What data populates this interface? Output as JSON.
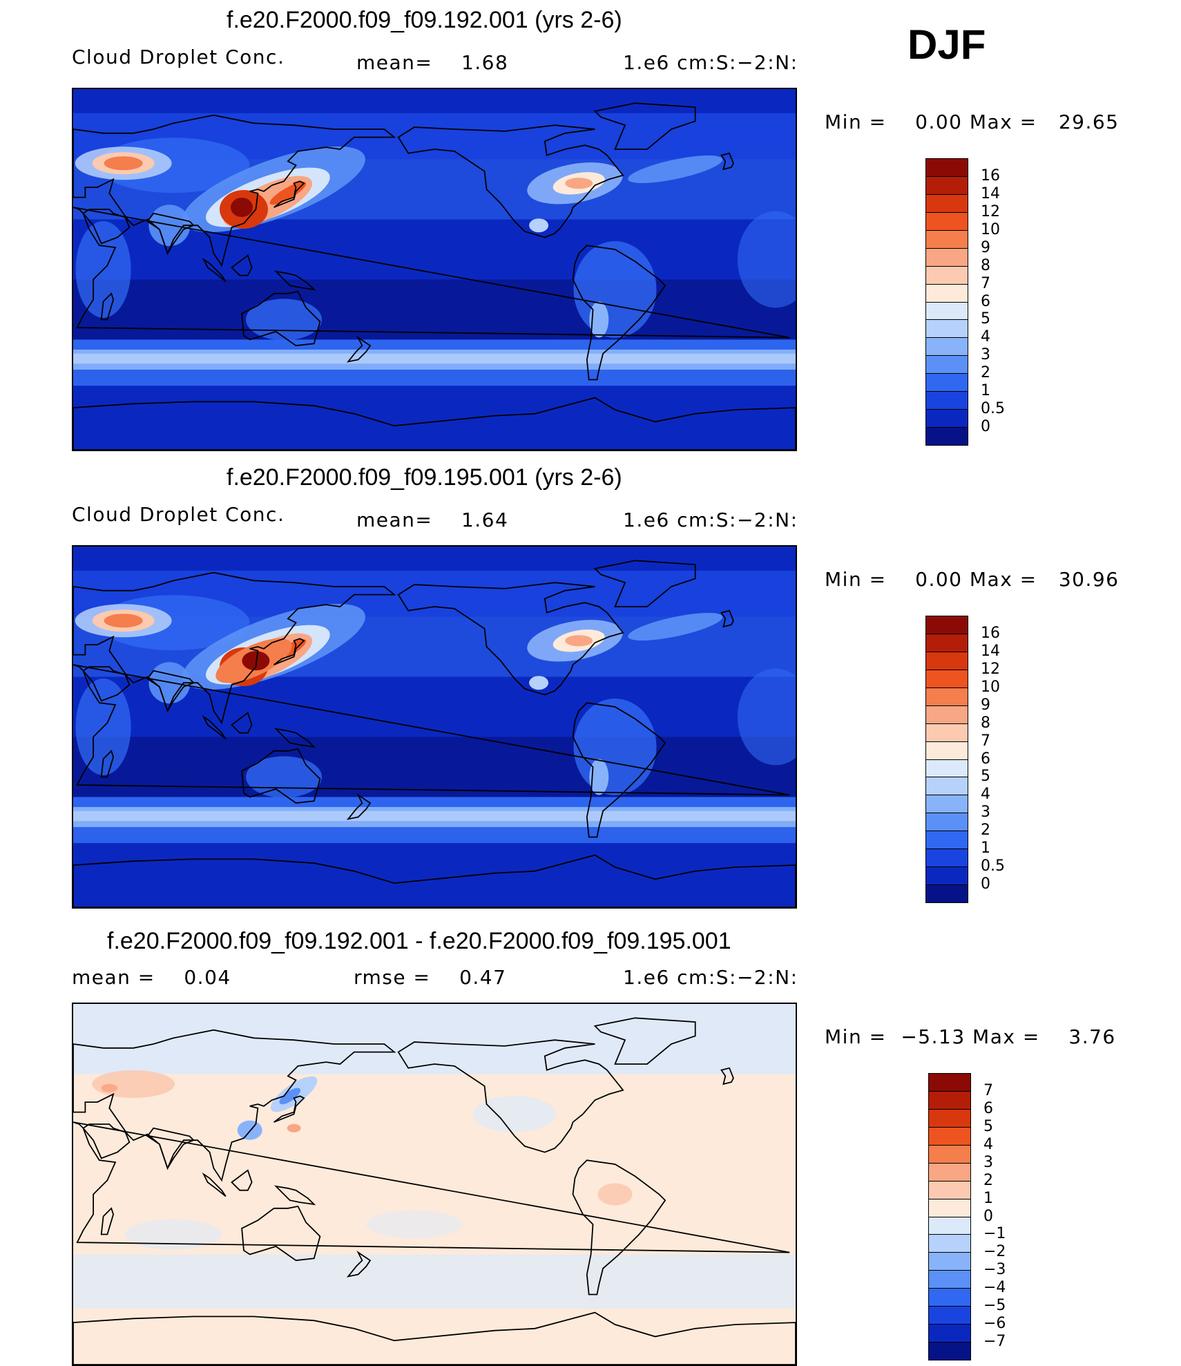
{
  "season": "DJF",
  "panels": [
    {
      "title": "f.e20.F2000.f09_f09.192.001 (yrs 2-6)",
      "left_text": "Cloud Droplet Conc.",
      "mid_text": "mean=    1.68",
      "right_text": "1.e6 cm:S:−2:N:",
      "minmax": "Min =    0.00 Max =   29.65",
      "levels": [
        "16",
        "14",
        "12",
        "10",
        "9",
        "8",
        "7",
        "6",
        "5",
        "4",
        "3",
        "2",
        "1",
        "0.5",
        "0"
      ],
      "colors": [
        "#8b0a05",
        "#b41e08",
        "#d8380d",
        "#ee5420",
        "#f47e4c",
        "#f8a683",
        "#fbcab0",
        "#fdeadb",
        "#dbe9fb",
        "#b6d1fb",
        "#88b3fa",
        "#5b91f6",
        "#3068f1",
        "#1a44e0",
        "#0a28c0",
        "#061287"
      ]
    },
    {
      "title": "f.e20.F2000.f09_f09.195.001 (yrs 2-6)",
      "left_text": "Cloud Droplet Conc.",
      "mid_text": "mean=    1.64",
      "right_text": "1.e6 cm:S:−2:N:",
      "minmax": "Min =    0.00 Max =   30.96",
      "levels": [
        "16",
        "14",
        "12",
        "10",
        "9",
        "8",
        "7",
        "6",
        "5",
        "4",
        "3",
        "2",
        "1",
        "0.5",
        "0"
      ],
      "colors": [
        "#8b0a05",
        "#b41e08",
        "#d8380d",
        "#ee5420",
        "#f47e4c",
        "#f8a683",
        "#fbcab0",
        "#fdeadb",
        "#dbe9fb",
        "#b6d1fb",
        "#88b3fa",
        "#5b91f6",
        "#3068f1",
        "#1a44e0",
        "#0a28c0",
        "#061287"
      ]
    },
    {
      "title": "f.e20.F2000.f09_f09.192.001 - f.e20.F2000.f09_f09.195.001",
      "left_text": "mean =    0.04",
      "mid_text": "rmse =    0.47",
      "right_text": "1.e6 cm:S:−2:N:",
      "minmax": "Min =  −5.13 Max =    3.76",
      "levels": [
        "7",
        "6",
        "5",
        "4",
        "3",
        "2",
        "1",
        "0",
        "−1",
        "−2",
        "−3",
        "−4",
        "−5",
        "−6",
        "−7"
      ],
      "colors": [
        "#8b0a05",
        "#b41e08",
        "#d8380d",
        "#ee5420",
        "#f47e4c",
        "#f8a683",
        "#fbcab0",
        "#fdeadb",
        "#dbe9fb",
        "#b6d1fb",
        "#88b3fa",
        "#5b91f6",
        "#3068f1",
        "#1a44e0",
        "#0a28c0",
        "#061287"
      ]
    }
  ]
}
